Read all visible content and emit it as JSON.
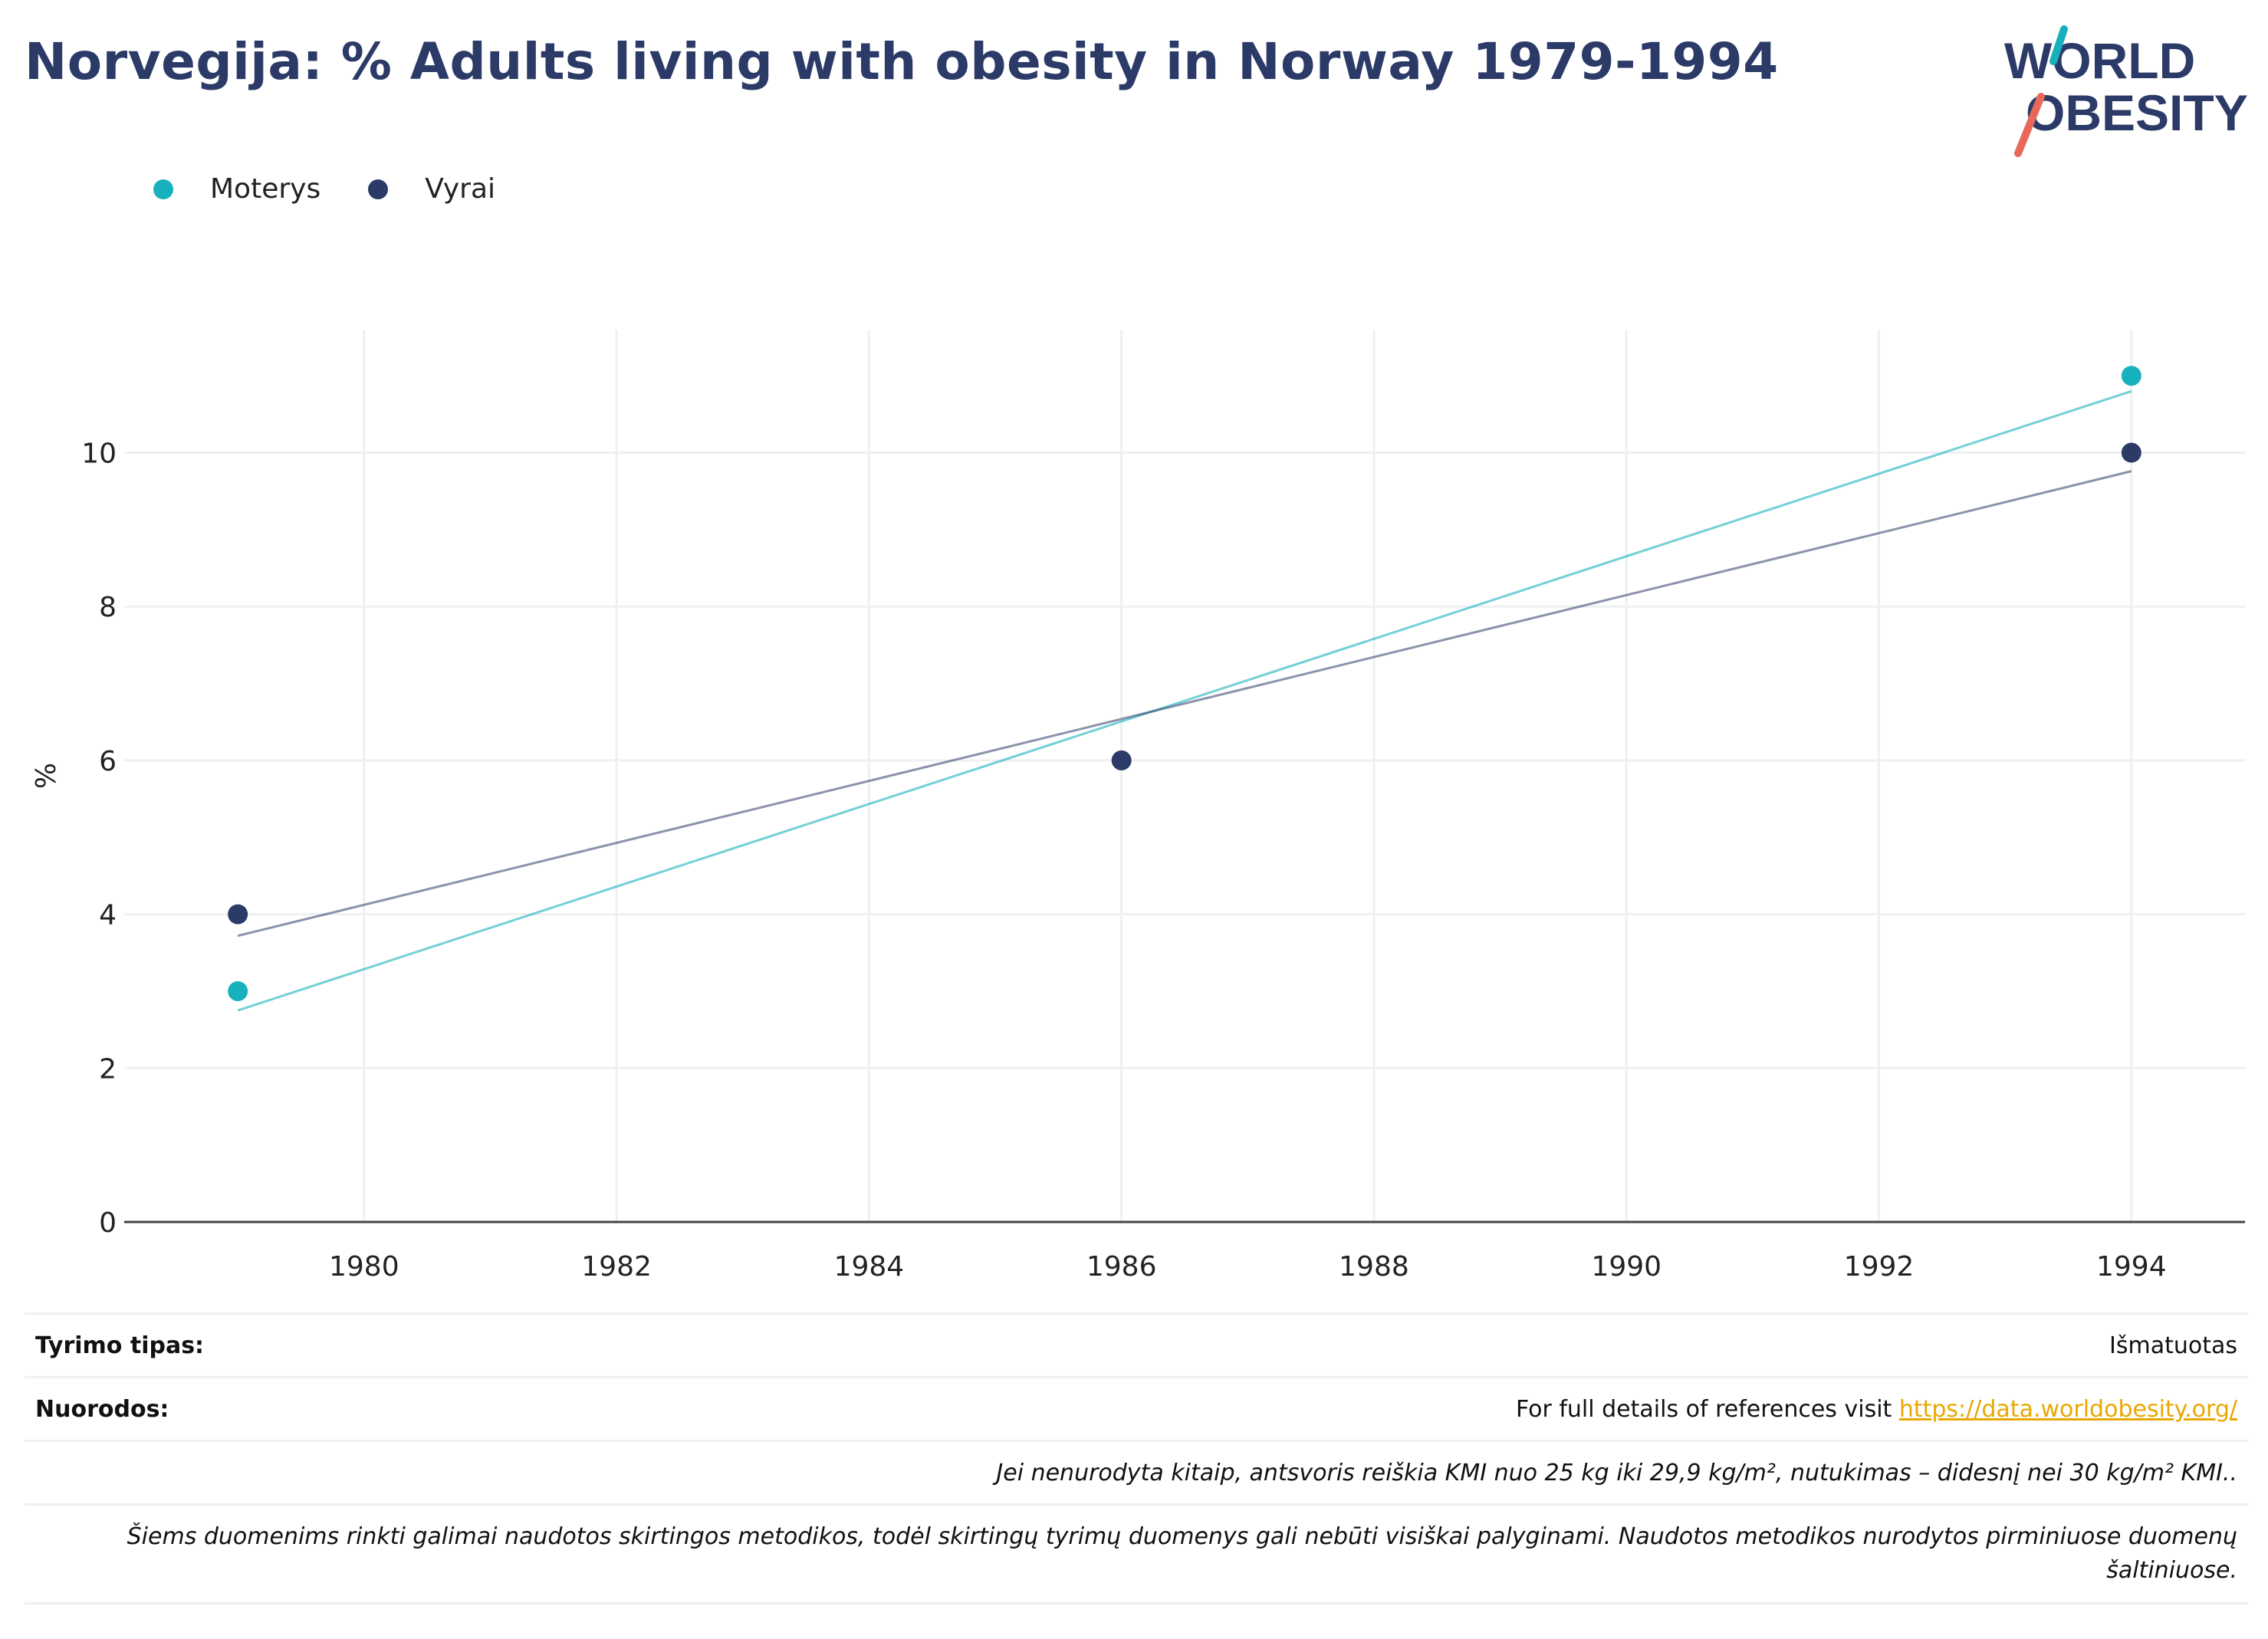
{
  "title": "Norvegija: % Adults living with obesity in Norway 1979-1994",
  "logo": {
    "line1": "WORLD",
    "line2": "OBESITY"
  },
  "colors": {
    "moterys": "#17b1bd",
    "vyrai": "#2b3a67",
    "title": "#2b3a67",
    "link": "#e9a800",
    "grid": "#eef0f2"
  },
  "chart_data": {
    "type": "scatter",
    "ylabel": "%",
    "xlim": [
      1978.1,
      1994.9
    ],
    "ylim": [
      0,
      11.6
    ],
    "x_ticks": [
      1980,
      1982,
      1984,
      1986,
      1988,
      1990,
      1992,
      1994
    ],
    "y_ticks": [
      0,
      2,
      4,
      6,
      8,
      10
    ],
    "grid": true,
    "legend_position": "top-left",
    "series": [
      {
        "name": "Moterys",
        "color": "#17b1bd",
        "points": [
          {
            "x": 1979,
            "y": 3
          },
          {
            "x": 1994,
            "y": 11
          }
        ],
        "trend": [
          {
            "x": 1979,
            "y": 2.75
          },
          {
            "x": 1994,
            "y": 10.8
          }
        ]
      },
      {
        "name": "Vyrai",
        "color": "#2b3a67",
        "points": [
          {
            "x": 1979,
            "y": 4
          },
          {
            "x": 1986,
            "y": 6
          },
          {
            "x": 1994,
            "y": 10
          }
        ],
        "trend": [
          {
            "x": 1979,
            "y": 3.72
          },
          {
            "x": 1994,
            "y": 9.76
          }
        ]
      }
    ]
  },
  "footer": {
    "study_type_label": "Tyrimo tipas:",
    "study_type_value": "Išmatuotas",
    "refs_label": "Nuorodos:",
    "refs_text": "For full details of references visit ",
    "refs_link": "https://data.worldobesity.org/",
    "note1": "Jei nenurodyta kitaip, antsvoris reiškia KMI nuo 25 kg iki 29,9 kg/m², nutukimas – didesnį nei 30 kg/m² KMI..",
    "note2": "Šiems duomenims rinkti galimai naudotos skirtingos metodikos, todėl skirtingų tyrimų duomenys gali nebūti visiškai palyginami. Naudotos metodikos nurodytos pirminiuose duomenų šaltiniuose."
  }
}
